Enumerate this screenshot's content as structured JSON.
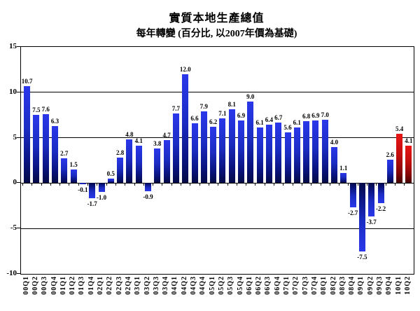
{
  "chart_data": {
    "type": "bar",
    "title": "實質本地生產總值",
    "subtitle": "每年轉變 (百分比, 以2007年價為基礎)",
    "categories": [
      "00Q1",
      "00Q2",
      "00Q3",
      "00Q4",
      "01Q1",
      "01Q2",
      "01Q3",
      "01Q4",
      "02Q1",
      "02Q2",
      "02Q3",
      "02Q4",
      "03Q1",
      "03Q2",
      "03Q3",
      "03Q4",
      "04Q1",
      "04Q2",
      "04Q3",
      "04Q4",
      "05Q1",
      "05Q2",
      "05Q3",
      "05Q4",
      "06Q1",
      "06Q2",
      "06Q3",
      "06Q4",
      "07Q1",
      "07Q2",
      "07Q3",
      "07Q4",
      "08Q1",
      "08Q2",
      "08Q3",
      "08Q4",
      "09Q1",
      "09Q2",
      "09Q3",
      "09Q4",
      "10Q1",
      "10Q2"
    ],
    "values": [
      10.7,
      7.5,
      7.6,
      6.3,
      2.7,
      1.5,
      -0.1,
      -1.7,
      -1.0,
      0.5,
      2.8,
      4.8,
      4.1,
      -0.9,
      3.8,
      4.7,
      7.7,
      12.0,
      6.6,
      7.9,
      6.2,
      7.1,
      8.1,
      6.9,
      9.0,
      6.1,
      6.4,
      6.7,
      5.6,
      6.1,
      6.8,
      6.9,
      7.0,
      4.0,
      1.1,
      -2.7,
      -7.5,
      -3.7,
      -2.2,
      2.6,
      5.4,
      4.1
    ],
    "value_labels": [
      "10.7",
      "7.5",
      "7.6",
      "6.3",
      "2.7",
      "1.5",
      "-0.1",
      "-1.7",
      "-1.0",
      "0.5",
      "2.8",
      "4.8",
      "4.1",
      "-0.9",
      "3.8",
      "4.7",
      "7.7",
      "12.0",
      "6.6",
      "7.9",
      "6.2",
      "7.1",
      "8.1",
      "6.9",
      "9.0",
      "6.1",
      "6.4",
      "6.7",
      "5.6",
      "6.1",
      "6.8",
      "6.9",
      "7.0",
      "4.0",
      "1.1",
      "-2.7",
      "-7.5",
      "-3.7",
      "-2.2",
      "2.6",
      "5.4",
      "4.1"
    ],
    "xlabel": "",
    "ylabel": "",
    "ylim": [
      -10,
      15
    ],
    "yticks": [
      15,
      10,
      5,
      0,
      -5,
      -10
    ],
    "gridlines": [
      10,
      5,
      -5
    ],
    "zero_line": 0,
    "legend": "none",
    "highlight_from_index": 40,
    "colors": {
      "bar_blue_top": "#2A38EA",
      "bar_blue_bottom": "#030A45",
      "bar_red_top": "#E81515",
      "bar_red_bottom": "#470000",
      "axis": "#000000",
      "background": "#FFFFFF",
      "label_text": "#000000"
    }
  }
}
